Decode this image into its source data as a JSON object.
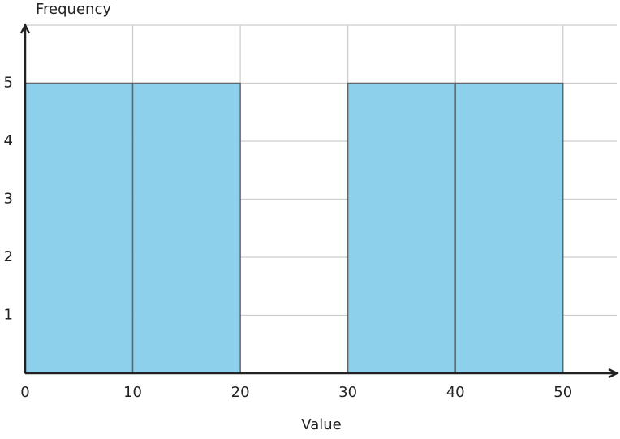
{
  "chart_data": {
    "type": "histogram",
    "bins": [
      0,
      10,
      20,
      30,
      40,
      50
    ],
    "values": [
      5,
      5,
      0,
      5,
      5
    ],
    "color": "#87ceeb",
    "xlim": [
      0,
      55
    ],
    "ylim": [
      0,
      6
    ],
    "xticks": [
      0,
      10,
      20,
      30,
      40,
      50
    ],
    "yticks": [
      1,
      2,
      3,
      4,
      5
    ],
    "xlabel": "Value",
    "ylabel": "Frequency",
    "grid": true
  }
}
